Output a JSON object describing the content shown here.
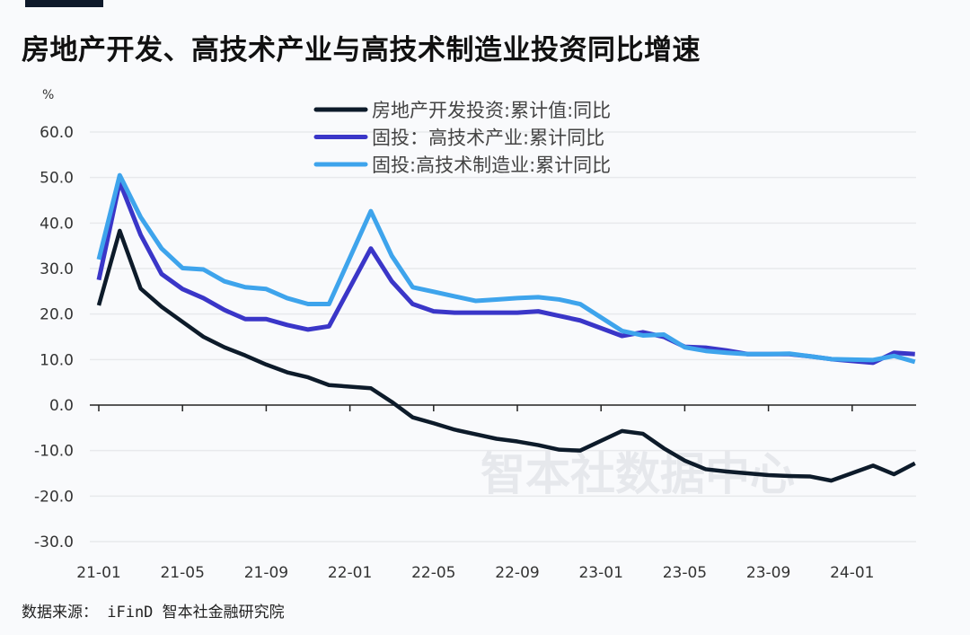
{
  "chart_data": {
    "type": "line",
    "title": "房地产开发、高技术产业与高技术制造业投资同比增速",
    "unit": "%",
    "ylim": [
      -30,
      60
    ],
    "yticks": [
      "60.0",
      "50.0",
      "40.0",
      "30.0",
      "20.0",
      "10.0",
      "0.0",
      "-10.0",
      "-20.0",
      "-30.0"
    ],
    "xticks": [
      "21-01",
      "21-05",
      "21-09",
      "22-01",
      "22-05",
      "22-09",
      "23-01",
      "23-05",
      "23-09",
      "24-01"
    ],
    "grid": true,
    "legend_position": "top-center",
    "x": [
      "21-01",
      "21-02",
      "21-03",
      "21-04",
      "21-05",
      "21-06",
      "21-07",
      "21-08",
      "21-09",
      "21-10",
      "21-11",
      "21-12",
      "22-02",
      "22-03",
      "22-04",
      "22-05",
      "22-06",
      "22-07",
      "22-08",
      "22-09",
      "22-10",
      "22-11",
      "22-12",
      "23-02",
      "23-03",
      "23-04",
      "23-05",
      "23-06",
      "23-07",
      "23-08",
      "23-09",
      "23-10",
      "23-11",
      "23-12",
      "24-02",
      "24-03",
      "24-04"
    ],
    "series": [
      {
        "name": "房地产开发投资:累计值:同比",
        "color": "#0d1b2a",
        "values": [
          21.9,
          38.3,
          25.6,
          21.6,
          18.3,
          15.0,
          12.7,
          10.9,
          8.9,
          7.2,
          6.1,
          4.4,
          3.7,
          0.7,
          -2.7,
          -4.0,
          -5.4,
          -6.4,
          -7.4,
          -8.0,
          -8.8,
          -9.8,
          -10.0,
          -5.7,
          -6.3,
          -9.5,
          -12.2,
          -14.1,
          -14.6,
          -15.0,
          -15.4,
          -15.6,
          -15.7,
          -16.6,
          -13.3,
          -15.2,
          -12.8
        ]
      },
      {
        "name": "固投：高技术产业:累计同比",
        "color": "#3a36c8",
        "values": [
          27.5,
          49.0,
          37.4,
          28.8,
          25.5,
          23.5,
          20.9,
          18.9,
          18.9,
          17.6,
          16.6,
          17.3,
          34.4,
          27.2,
          22.2,
          20.6,
          20.3,
          20.3,
          20.3,
          20.3,
          20.6,
          19.6,
          18.6,
          15.2,
          16.0,
          15.0,
          12.8,
          12.6,
          12.0,
          11.2,
          11.2,
          11.2,
          10.7,
          10.1,
          9.3,
          11.5,
          11.2
        ]
      },
      {
        "name": "固投:高技术制造业:累计同比",
        "color": "#3ea4ec",
        "values": [
          32.0,
          50.5,
          41.3,
          34.4,
          30.1,
          29.8,
          27.2,
          25.9,
          25.5,
          23.5,
          22.2,
          22.2,
          42.6,
          32.8,
          25.9,
          24.9,
          23.9,
          22.9,
          23.2,
          23.5,
          23.7,
          23.2,
          22.2,
          16.3,
          15.3,
          15.5,
          12.7,
          11.9,
          11.5,
          11.2,
          11.2,
          11.3,
          10.7,
          10.1,
          9.9,
          10.8,
          9.5
        ]
      }
    ]
  },
  "watermark": "智本社数据中心",
  "source": "数据来源： iFinD 智本社金融研究院"
}
